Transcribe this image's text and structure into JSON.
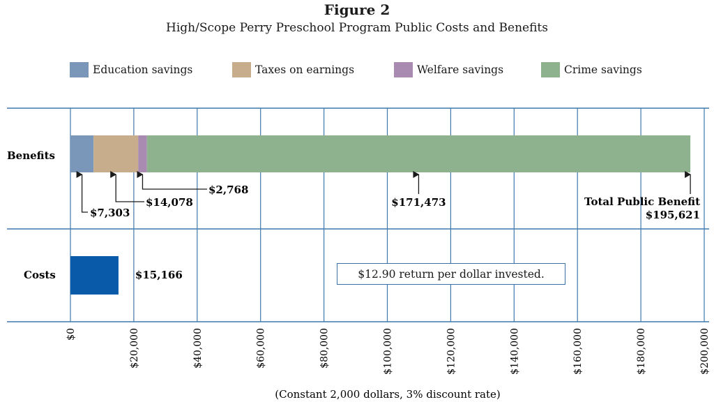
{
  "title": "Figure 2",
  "subtitle": "High/Scope Perry Preschool Program Public Costs and Benefits",
  "note": "$12.90 return per dollar invested.",
  "legend": [
    {
      "label": "Education savings",
      "color": "#7a96b8"
    },
    {
      "label": "Taxes on earnings",
      "color": "#c8ad8c"
    },
    {
      "label": "Welfare savings",
      "color": "#a98ab0"
    },
    {
      "label": "Crime savings",
      "color": "#8fb28e"
    }
  ],
  "chart_data": {
    "type": "bar",
    "orientation": "horizontal",
    "stacked": true,
    "categories": [
      "Benefits",
      "Costs"
    ],
    "xlim": [
      0,
      200000
    ],
    "xticks": [
      0,
      20000,
      40000,
      60000,
      80000,
      100000,
      120000,
      140000,
      160000,
      180000,
      200000
    ],
    "xtick_labels": [
      "$0",
      "$20,000",
      "$40,000",
      "$60,000",
      "$80,000",
      "$100,000",
      "$120,000",
      "$140,000",
      "$160,000",
      "$180,000",
      "$200,000"
    ],
    "xlabel": "(Constant 2,000 dollars, 3% discount rate)",
    "grid": true,
    "benefits": [
      {
        "name": "Education savings",
        "value": 7303,
        "label": "$7,303",
        "color": "#7a96b8"
      },
      {
        "name": "Taxes on earnings",
        "value": 14078,
        "label": "$14,078",
        "color": "#c8ad8c"
      },
      {
        "name": "Welfare savings",
        "value": 2768,
        "label": "$2,768",
        "color": "#a98ab0"
      },
      {
        "name": "Crime savings",
        "value": 171473,
        "label": "$171,473",
        "color": "#8fb28e"
      }
    ],
    "total_benefit": {
      "label": "Total Public Benefit",
      "value": 195621,
      "value_label": "$195,621"
    },
    "costs": {
      "value": 15166,
      "label": "$15,166",
      "color": "#0a5aaa"
    }
  }
}
